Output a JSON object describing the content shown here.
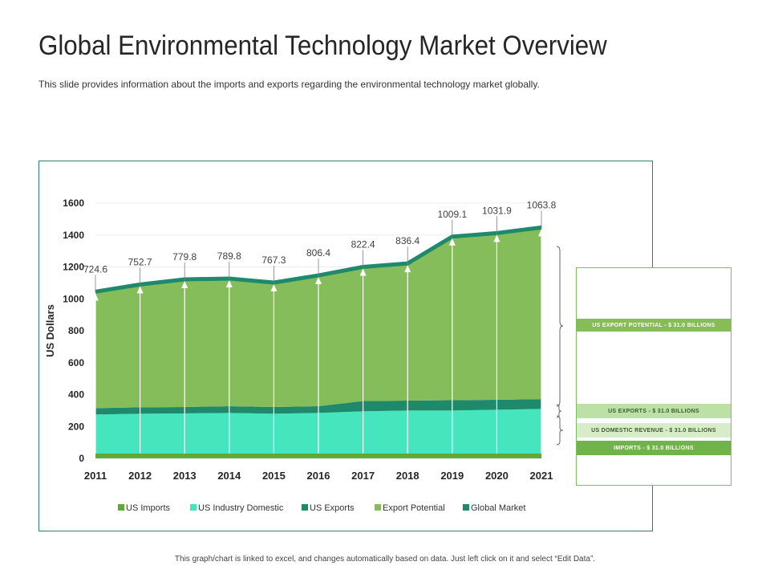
{
  "title": "Global Environmental Technology Market Overview",
  "subtitle": "This slide provides information about the imports and exports regarding  the environmental technology market globally.",
  "footnote": "This graph/chart is linked to excel, and changes automatically  based on data. Just left click on it and select “Edit Data”.",
  "side_panel": {
    "labels": [
      {
        "text": "US EXPORT POTENTIAL - $ 31.0 BILLIONS",
        "bg": "#86bd58",
        "color": "#ffffff"
      },
      {
        "text": "US EXPORTS - $ 31.0 BILLIONS",
        "bg": "#bde0a6",
        "color": "#3b5a2a"
      },
      {
        "text": "US DOMESTIC REVENUE  - $ 31.0 BILLIONS",
        "bg": "#d9ecca",
        "color": "#3b5a2a"
      },
      {
        "text": "IMPORTS - $ 31.0 BILLIONS",
        "bg": "#6fb34a",
        "color": "#ffffff"
      }
    ]
  },
  "colors": {
    "us_imports": "#5fa83c",
    "us_industry_domestic": "#45e5bd",
    "us_exports": "#1e8a6b",
    "export_potential": "#85bd5b",
    "global_market": "#1e8a6b"
  },
  "chart_data": {
    "type": "area",
    "stacked": true,
    "x": [
      "2011",
      "2012",
      "2013",
      "2014",
      "2015",
      "2016",
      "2017",
      "2018",
      "2019",
      "2020",
      "2021"
    ],
    "ylabel": "US Dollars",
    "xlabel": "",
    "ylim": [
      0,
      1600
    ],
    "yticks": [
      0,
      200,
      400,
      600,
      800,
      1000,
      1200,
      1400,
      1600
    ],
    "grid": true,
    "legend_position": "bottom",
    "series": [
      {
        "name": "US Imports",
        "values": [
          30,
          30,
          30,
          30,
          30,
          30,
          30,
          30,
          30,
          30,
          30
        ]
      },
      {
        "name": "US Industry Domestic",
        "values": [
          245,
          250,
          252,
          255,
          250,
          255,
          265,
          270,
          270,
          275,
          280
        ]
      },
      {
        "name": "US Exports",
        "values": [
          40,
          40,
          40,
          42,
          42,
          42,
          65,
          62,
          65,
          62,
          62
        ]
      },
      {
        "name": "Export Potential",
        "values": [
          720,
          760,
          790,
          790,
          770,
          810,
          830,
          850,
          1015,
          1035,
          1065
        ]
      },
      {
        "name": "Global Market",
        "values": [
          20,
          20,
          20,
          20,
          20,
          20,
          20,
          20,
          20,
          20,
          20
        ]
      }
    ],
    "data_labels": [
      "724.6",
      "752.7",
      "779.8",
      "789.8",
      "767.3",
      "806.4",
      "822.4",
      "836.4",
      "1009.1",
      "1031.9",
      "1063.8"
    ]
  }
}
